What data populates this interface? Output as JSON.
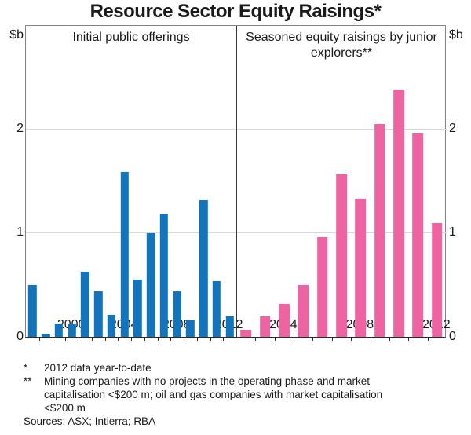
{
  "title": "Resource Sector Equity Raisings*",
  "axis": {
    "unit_left": "$b",
    "unit_right": "$b",
    "ylim": [
      0,
      3
    ],
    "yticks": [
      0,
      1,
      2
    ],
    "grid": "horizontal gridlines at 1 and 2"
  },
  "chart_data": [
    {
      "type": "bar",
      "panel": "left",
      "title": "Initial public offerings",
      "color": "#1274bc",
      "years": [
        1997,
        1998,
        1999,
        2000,
        2001,
        2002,
        2003,
        2004,
        2005,
        2006,
        2007,
        2008,
        2009,
        2010,
        2011,
        2012
      ],
      "values": [
        0.5,
        0.03,
        0.13,
        0.13,
        0.63,
        0.44,
        0.21,
        1.59,
        0.55,
        1.0,
        1.19,
        0.44,
        0.16,
        1.32,
        0.54,
        0.2
      ],
      "x_tick_labels": [
        "2000",
        "2004",
        "2008",
        "2012"
      ],
      "ylabel": "$b",
      "ylim": [
        0,
        3
      ]
    },
    {
      "type": "bar",
      "panel": "right",
      "title": "Seasoned equity raisings by junior explorers**",
      "color": "#ee64a2",
      "years": [
        2002,
        2003,
        2004,
        2005,
        2006,
        2007,
        2008,
        2009,
        2010,
        2011,
        2012
      ],
      "values": [
        0.07,
        0.2,
        0.32,
        0.5,
        0.96,
        1.57,
        1.33,
        2.05,
        2.39,
        1.96,
        1.1
      ],
      "x_tick_labels": [
        "2004",
        "2008",
        "2012"
      ],
      "ylabel": "$b",
      "ylim": [
        0,
        3
      ]
    }
  ],
  "footnotes": [
    {
      "marker": "*",
      "text": "2012 data year-to-date"
    },
    {
      "marker": "**",
      "text": "Mining companies with no projects in the operating phase and market capitalisation <$200 m; oil and gas companies with market capitalisation <$200 m"
    }
  ],
  "sources": "Sources: ASX; Intierra; RBA"
}
